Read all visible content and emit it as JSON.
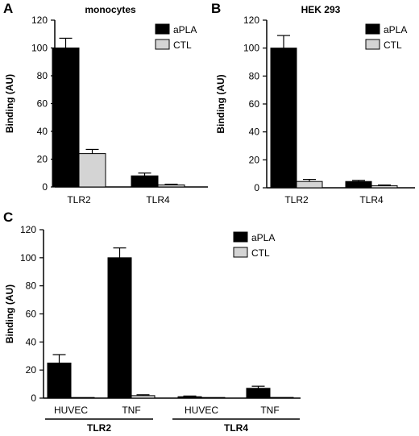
{
  "figure": {
    "colors": {
      "aPLA": "#000000",
      "CTL": "#d4d4d4",
      "axis": "#000000"
    }
  },
  "chart_data": [
    {
      "id": "A",
      "panel_label": "A",
      "type": "bar",
      "title": "monocytes",
      "ylabel": "Binding (AU)",
      "ylim": [
        0,
        120
      ],
      "yticks": [
        0,
        20,
        40,
        60,
        80,
        100,
        120
      ],
      "categories": [
        "TLR2",
        "TLR4"
      ],
      "series": [
        {
          "name": "aPLA",
          "color": "#000000",
          "values": [
            100,
            8
          ],
          "errors": [
            7,
            2
          ]
        },
        {
          "name": "CTL",
          "color": "#d4d4d4",
          "values": [
            24,
            1.5
          ],
          "errors": [
            3,
            0.5
          ]
        }
      ],
      "legend": "top-right"
    },
    {
      "id": "B",
      "panel_label": "B",
      "type": "bar",
      "title": "HEK 293",
      "ylabel": "Binding (AU)",
      "ylim": [
        0,
        120
      ],
      "yticks": [
        0,
        20,
        40,
        60,
        80,
        100,
        120
      ],
      "categories": [
        "TLR2",
        "TLR4"
      ],
      "series": [
        {
          "name": "aPLA",
          "color": "#000000",
          "values": [
            100,
            4.5
          ],
          "errors": [
            9,
            0.8
          ]
        },
        {
          "name": "CTL",
          "color": "#d4d4d4",
          "values": [
            4.5,
            1.5
          ],
          "errors": [
            1.5,
            0.5
          ]
        }
      ],
      "legend": "top-right"
    },
    {
      "id": "C",
      "panel_label": "C",
      "type": "bar",
      "title": "",
      "ylabel": "Binding (AU)",
      "ylim": [
        0,
        120
      ],
      "yticks": [
        0,
        20,
        40,
        60,
        80,
        100,
        120
      ],
      "categories": [
        "HUVEC",
        "TNF",
        "HUVEC",
        "TNF"
      ],
      "groups": [
        {
          "label": "TLR2",
          "categories": [
            0,
            1
          ]
        },
        {
          "label": "TLR4",
          "categories": [
            2,
            3
          ]
        }
      ],
      "series": [
        {
          "name": "aPLA",
          "color": "#000000",
          "values": [
            25,
            100,
            1,
            7
          ],
          "errors": [
            6,
            7,
            0.5,
            1.5
          ]
        },
        {
          "name": "CTL",
          "color": "#d4d4d4",
          "values": [
            0.3,
            1.8,
            0.2,
            0.5
          ],
          "errors": [
            0,
            0.6,
            0,
            0
          ]
        }
      ],
      "legend": "top-right"
    }
  ]
}
